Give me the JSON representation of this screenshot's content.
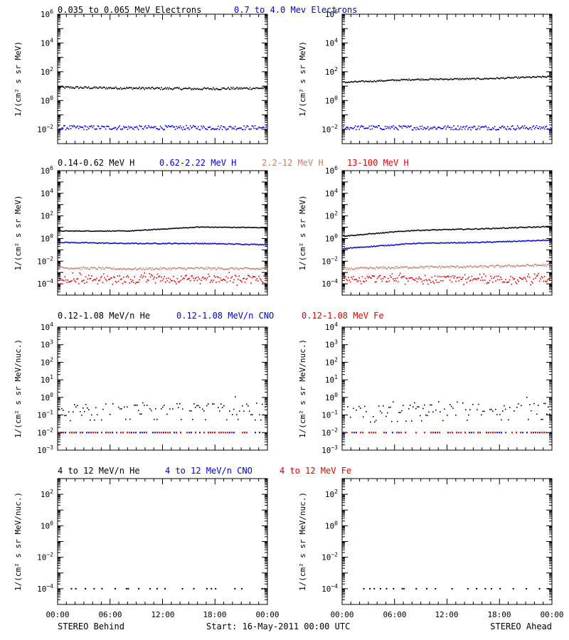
{
  "footer": {
    "left_label": "STEREO Behind",
    "center_label": "Start: 16-May-2011 00:00 UTC",
    "right_label": "STEREO Ahead"
  },
  "x_ticks": [
    "00:00",
    "06:00",
    "12:00",
    "18:00",
    "00:00"
  ],
  "colors": {
    "black": "#000000",
    "blue": "#0000dd",
    "tan": "#c0806a",
    "red": "#e00000"
  },
  "chart_data": [
    {
      "type": "scatter",
      "row": 1,
      "ylabel": "1/(cm² s sr MeV)",
      "ylim_exp": [
        -3,
        6
      ],
      "y_ticks_exp": [
        -2,
        0,
        2,
        4,
        6
      ],
      "legend": [
        {
          "name": "0.035 to 0.065 MeV Electrons",
          "color": "#000000"
        },
        {
          "name": "0.7 to 4.0 Mev Electrons",
          "color": "#0000dd"
        }
      ],
      "panels": [
        {
          "spacecraft": "STEREO Behind",
          "series": [
            {
              "name": "0.035 to 0.065 MeV Electrons",
              "color": "#000000",
              "log10_level": [
                0.9,
                0.85,
                0.8,
                0.85
              ],
              "spread": 0.08
            },
            {
              "name": "0.7 to 4.0 Mev Electrons",
              "color": "#0000dd",
              "log10_level": [
                -1.9,
                -1.9,
                -1.9,
                -1.9
              ],
              "spread": 0.15
            }
          ]
        },
        {
          "spacecraft": "STEREO Ahead",
          "series": [
            {
              "name": "0.035 to 0.065 MeV Electrons",
              "color": "#000000",
              "log10_level": [
                1.25,
                1.45,
                1.5,
                1.65
              ],
              "spread": 0.05
            },
            {
              "name": "0.7 to 4.0 Mev Electrons",
              "color": "#0000dd",
              "log10_level": [
                -1.9,
                -1.9,
                -1.9,
                -1.9
              ],
              "spread": 0.15
            }
          ]
        }
      ]
    },
    {
      "type": "scatter",
      "row": 2,
      "ylabel": "1/(cm² s sr MeV)",
      "ylim_exp": [
        -5,
        6
      ],
      "y_ticks_exp": [
        -4,
        -2,
        0,
        2,
        4,
        6
      ],
      "legend": [
        {
          "name": "0.14-0.62 MeV H",
          "color": "#000000"
        },
        {
          "name": "0.62-2.22 MeV H",
          "color": "#0000dd"
        },
        {
          "name": "2.2-12 MeV H",
          "color": "#c0806a"
        },
        {
          "name": "13-100 MeV H",
          "color": "#e00000"
        }
      ],
      "panels": [
        {
          "spacecraft": "STEREO Behind",
          "series": [
            {
              "name": "0.14-0.62 MeV H",
              "color": "#000000",
              "log10_level": [
                0.65,
                0.65,
                1.0,
                0.95
              ],
              "spread": 0.03
            },
            {
              "name": "0.62-2.22 MeV H",
              "color": "#0000dd",
              "log10_level": [
                -0.35,
                -0.45,
                -0.45,
                -0.55
              ],
              "spread": 0.04
            },
            {
              "name": "2.2-12 MeV H",
              "color": "#c0806a",
              "log10_level": [
                -2.6,
                -2.7,
                -2.65,
                -2.7
              ],
              "spread": 0.1
            },
            {
              "name": "13-100 MeV H",
              "color": "#e00000",
              "log10_level": [
                -3.6,
                -3.6,
                -3.6,
                -3.6
              ],
              "spread": 0.3
            }
          ]
        },
        {
          "spacecraft": "STEREO Ahead",
          "series": [
            {
              "name": "0.14-0.62 MeV H",
              "color": "#000000",
              "log10_level": [
                0.2,
                0.7,
                0.85,
                1.05
              ],
              "spread": 0.04
            },
            {
              "name": "0.62-2.22 MeV H",
              "color": "#0000dd",
              "log10_level": [
                -0.9,
                -0.45,
                -0.35,
                -0.15
              ],
              "spread": 0.04
            },
            {
              "name": "2.2-12 MeV H",
              "color": "#c0806a",
              "log10_level": [
                -2.7,
                -2.55,
                -2.5,
                -2.35
              ],
              "spread": 0.1
            },
            {
              "name": "13-100 MeV H",
              "color": "#e00000",
              "log10_level": [
                -3.6,
                -3.6,
                -3.6,
                -3.6
              ],
              "spread": 0.3
            }
          ]
        }
      ]
    },
    {
      "type": "scatter",
      "row": 3,
      "ylabel": "1/(cm² s sr MeV/nuc.)",
      "ylim_exp": [
        -3,
        4
      ],
      "y_ticks_exp": [
        -3,
        -2,
        -1,
        0,
        1,
        2,
        3,
        4
      ],
      "legend": [
        {
          "name": "0.12-1.08 MeV/n He",
          "color": "#000000"
        },
        {
          "name": "0.12-1.08 MeV/n CNO",
          "color": "#0000dd"
        },
        {
          "name": "0.12-1.08 MeV Fe",
          "color": "#e00000"
        }
      ],
      "panels": [
        {
          "spacecraft": "STEREO Behind",
          "series": [
            {
              "name": "0.12-1.08 MeV/n He",
              "color": "#000000",
              "log10_level": [
                -0.85,
                -0.65,
                -0.7,
                -0.75
              ],
              "spread": 0.3
            },
            {
              "name": "0.12-1.08 MeV/n CNO",
              "color": "#0000dd",
              "log10_level": [
                -2.0,
                -2.0,
                -2.0,
                -2.0
              ],
              "spread": 0.0
            },
            {
              "name": "0.12-1.08 MeV Fe",
              "color": "#e00000",
              "log10_level": [
                -2.0,
                -2.0,
                -2.0,
                -2.0
              ],
              "spread": 0.0
            }
          ]
        },
        {
          "spacecraft": "STEREO Ahead",
          "series": [
            {
              "name": "0.12-1.08 MeV/n He",
              "color": "#000000",
              "log10_level": [
                -1.05,
                -0.85,
                -0.75,
                -0.65
              ],
              "spread": 0.3
            },
            {
              "name": "0.12-1.08 MeV/n CNO",
              "color": "#0000dd",
              "log10_level": [
                -2.0,
                -2.0,
                -2.0,
                -2.0
              ],
              "spread": 0.0
            },
            {
              "name": "0.12-1.08 MeV Fe",
              "color": "#e00000",
              "log10_level": [
                -2.0,
                -2.0,
                -2.0,
                -2.0
              ],
              "spread": 0.0
            }
          ]
        }
      ]
    },
    {
      "type": "scatter",
      "row": 4,
      "ylabel": "1/(cm² s sr MeV/nuc.)",
      "ylim_exp": [
        -5,
        3
      ],
      "y_ticks_exp": [
        -4,
        -2,
        0,
        2
      ],
      "legend": [
        {
          "name": "4 to 12 MeV/n He",
          "color": "#000000"
        },
        {
          "name": "4 to 12 MeV/n CNO",
          "color": "#0000dd"
        },
        {
          "name": "4 to 12 MeV Fe",
          "color": "#e00000"
        }
      ],
      "panels": [
        {
          "spacecraft": "STEREO Behind",
          "series": [
            {
              "name": "4 to 12 MeV/n He",
              "color": "#000000",
              "sparse_hours": [
                1.5,
                2.0,
                3.1,
                4.1,
                5.0,
                6.5,
                7.8,
                8.0,
                9.2,
                10.5,
                11.3,
                12.2,
                14.2,
                15.5,
                17.0,
                17.5,
                18.0,
                20.2,
                21.0,
                23.3,
                23.6
              ],
              "log10_value": -4.0
            }
          ]
        },
        {
          "spacecraft": "STEREO Ahead",
          "series": [
            {
              "name": "4 to 12 MeV/n He",
              "color": "#000000",
              "sparse_hours": [
                2.4,
                3.1,
                3.6,
                4.3,
                5.0,
                5.8,
                6.8,
                8.4,
                9.6,
                10.6,
                12.5,
                14.3,
                15.3,
                16.3,
                17.0,
                18.0,
                19.5,
                21.0,
                22.5,
                23.5
              ],
              "log10_value": -4.0
            },
            {
              "name": "4 to 12 MeV/n CNO",
              "color": "#0000dd",
              "sparse_hours": [
                7.0
              ],
              "log10_value": -4.0
            }
          ]
        }
      ]
    }
  ]
}
